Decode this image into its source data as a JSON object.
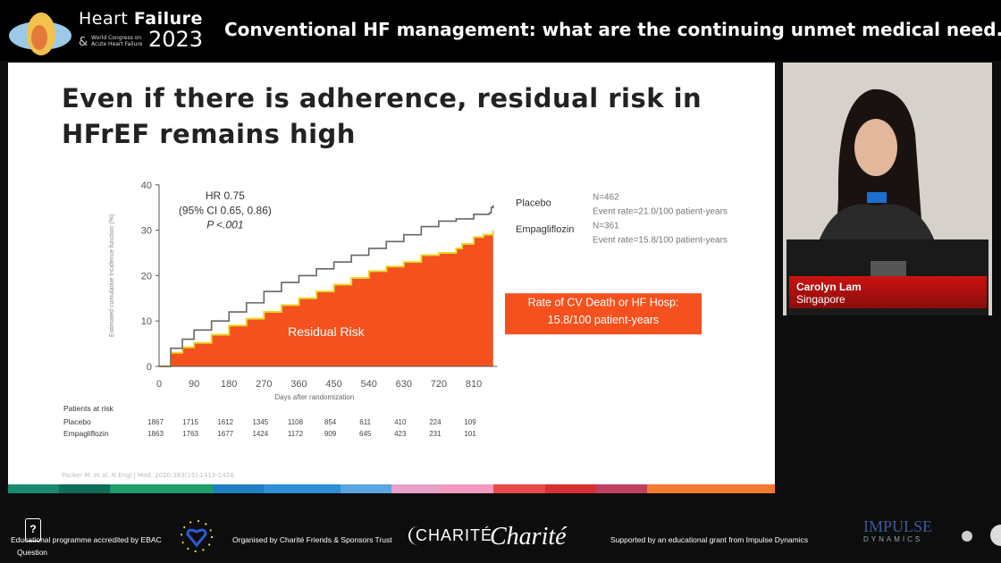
{
  "header": {
    "brand_line1a": "Heart ",
    "brand_line1b": "Failure",
    "brand_amp": "&",
    "brand_sub": "World Congress on Acute Heart Failure",
    "brand_year": "2023",
    "talk_title": "Conventional HF management: what are the continuing unmet medical need..."
  },
  "slide": {
    "title_line1": "Even if there is adherence, residual risk in",
    "title_line2": "HFrEF remains high",
    "citation": "Packer M. et al. N Engl J Med. 2020;383(15):1413-1424."
  },
  "chart_data": {
    "type": "line",
    "title": "",
    "xlabel": "Days after randomization",
    "ylabel": "Estimated cumulative incidence function (%)",
    "xlim": [
      0,
      870
    ],
    "ylim": [
      0,
      40
    ],
    "xticks": [
      0,
      90,
      180,
      270,
      360,
      450,
      540,
      630,
      720,
      810
    ],
    "yticks": [
      0,
      10,
      20,
      30,
      40
    ],
    "series": [
      {
        "name": "Placebo",
        "color": "#666666",
        "x": [
          0,
          30,
          60,
          90,
          135,
          180,
          225,
          270,
          315,
          360,
          405,
          450,
          495,
          540,
          585,
          630,
          675,
          720,
          765,
          810,
          850,
          855,
          860
        ],
        "y": [
          0,
          4,
          6,
          8,
          10,
          12,
          14,
          16.5,
          18.5,
          20,
          21.5,
          23,
          24.5,
          26,
          27.5,
          29,
          30.8,
          32,
          32.5,
          33.5,
          33.8,
          35,
          35.5
        ]
      },
      {
        "name": "Empagliflozin",
        "color": "#f4511e",
        "fill": true,
        "x": [
          0,
          30,
          60,
          90,
          135,
          180,
          225,
          270,
          315,
          360,
          405,
          450,
          495,
          540,
          585,
          630,
          675,
          720,
          765,
          780,
          810,
          835,
          860
        ],
        "y": [
          0,
          3,
          4.2,
          5.2,
          7,
          9,
          10.5,
          12,
          13.5,
          15,
          16.5,
          18,
          19.5,
          21,
          22,
          23,
          24.5,
          25,
          26,
          27,
          28.5,
          29,
          30
        ]
      }
    ],
    "annotations": {
      "hr": "HR 0.75",
      "ci": "(95% CI 0.65, 0.86)",
      "p": "P <.001",
      "residual": "Residual Risk",
      "box_line1": "Rate of CV Death or HF Hosp:",
      "box_line2": "15.8/100 patient-years",
      "placebo_label": "Placebo",
      "placebo_n": "N=462",
      "placebo_rate": "Event rate=21.0/100 patient-years",
      "empa_label": "Empagliflozin",
      "empa_n": "N=361",
      "empa_rate": "Event rate=15.8/100 patient-years"
    },
    "risk_table": {
      "header": "Patients at risk",
      "rows": [
        {
          "label": "Placebo",
          "values": [
            1867,
            1715,
            1612,
            1345,
            1108,
            854,
            611,
            410,
            224,
            109
          ]
        },
        {
          "label": "Empagliflozin",
          "values": [
            1863,
            1763,
            1677,
            1424,
            1172,
            909,
            645,
            423,
            231,
            101
          ]
        }
      ]
    }
  },
  "speaker": {
    "name": "Carolyn Lam",
    "country": "Singapore"
  },
  "footer": {
    "ebac": "Educational programme accredited by EBAC",
    "question": "Question",
    "organised": "Organised by Charité Friends & Sponsors Trust",
    "charite": "CHARITÉ",
    "charite_script": "Charité",
    "supported": "Supported by an educational grant from Impulse Dynamics",
    "impulse": "IMPULSE",
    "dynamics": "DYNAMICS"
  }
}
